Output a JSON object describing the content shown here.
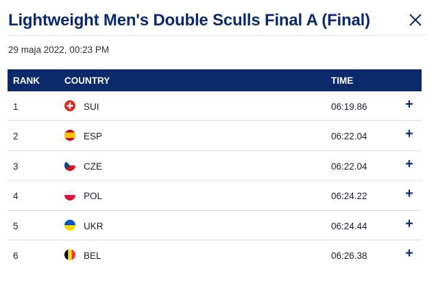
{
  "header": {
    "title": "Lightweight Men's Double Sculls Final A (Final)",
    "close_icon": "close-icon"
  },
  "timestamp": "29 maja 2022, 00:23 PM",
  "table": {
    "columns": {
      "rank": "RANK",
      "country": "COUNTRY",
      "time": "TIME"
    },
    "rows": [
      {
        "rank": "1",
        "country": "SUI",
        "flag": "switzerland-flag-icon",
        "time": "06:19.86",
        "expand": "+"
      },
      {
        "rank": "2",
        "country": "ESP",
        "flag": "spain-flag-icon",
        "time": "06:22.04",
        "expand": "+"
      },
      {
        "rank": "3",
        "country": "CZE",
        "flag": "czech-flag-icon",
        "time": "06:22.04",
        "expand": "+"
      },
      {
        "rank": "4",
        "country": "POL",
        "flag": "poland-flag-icon",
        "time": "06:24.22",
        "expand": "+"
      },
      {
        "rank": "5",
        "country": "UKR",
        "flag": "ukraine-flag-icon",
        "time": "06:24.44",
        "expand": "+"
      },
      {
        "rank": "6",
        "country": "BEL",
        "flag": "belgium-flag-icon",
        "time": "06:26.38",
        "expand": "+"
      }
    ]
  },
  "colors": {
    "brand_navy": "#0b2a6b",
    "divider": "#d9dce3"
  }
}
